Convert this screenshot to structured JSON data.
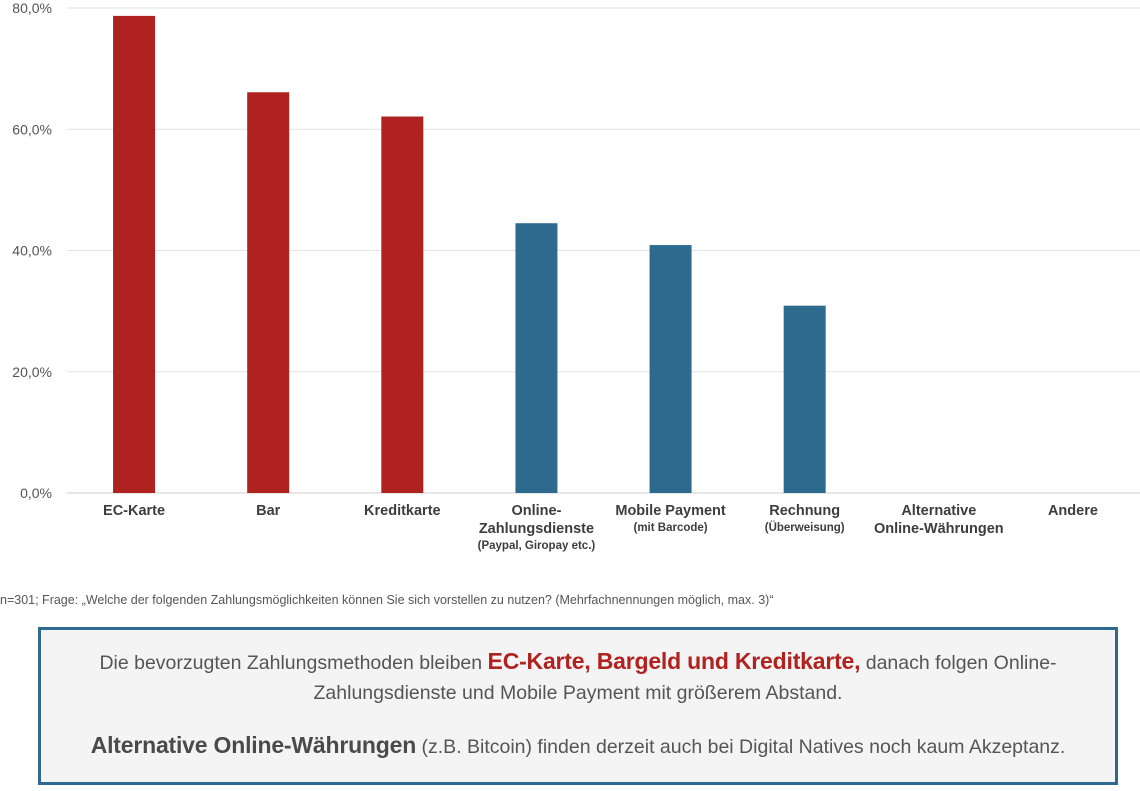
{
  "chart_data": {
    "type": "bar",
    "categories": [
      {
        "lines": [
          "EC-Karte"
        ],
        "sub": []
      },
      {
        "lines": [
          "Bar"
        ],
        "sub": []
      },
      {
        "lines": [
          "Kreditkarte"
        ],
        "sub": []
      },
      {
        "lines": [
          "Online-",
          "Zahlungsdienste"
        ],
        "sub": [
          "(Paypal, Giropay etc.)"
        ]
      },
      {
        "lines": [
          "Mobile Payment"
        ],
        "sub": [
          "(mit Barcode)"
        ]
      },
      {
        "lines": [
          "Rechnung"
        ],
        "sub": [
          "(Überweisung)"
        ]
      },
      {
        "lines": [
          "Alternative",
          "Online-Währungen"
        ],
        "sub": []
      },
      {
        "lines": [
          "Andere"
        ],
        "sub": []
      }
    ],
    "values": [
      78.7,
      66.1,
      62.1,
      44.5,
      40.9,
      30.9,
      0.0,
      0.0
    ],
    "bar_colors": [
      "#b0221f",
      "#b0221f",
      "#b0221f",
      "#2e6a8e",
      "#2e6a8e",
      "#2e6a8e",
      "#2e6a8e",
      "#2e6a8e"
    ],
    "ylim": [
      0,
      80
    ],
    "yticks": [
      "0,0%",
      "20,0%",
      "40,0%",
      "60,0%",
      "80,0%"
    ],
    "ytick_values": [
      0,
      20,
      40,
      60,
      80
    ],
    "grid": true,
    "gridline_color": "#e3e3e3"
  },
  "footnote": "n=301; Frage: „Welche der folgenden Zahlungsmöglichkeiten können Sie sich vorstellen zu nutzen? (Mehrfachnennungen möglich, max. 3)“",
  "summary": {
    "p1_before": "Die bevorzugten Zahlungsmethoden bleiben ",
    "p1_highlight": "EC-Karte, Bargeld und Kreditkarte,",
    "p1_after": " danach folgen Online-Zahlungsdienste und Mobile Payment mit größerem Abstand.",
    "p2_highlight": "Alternative Online-Währungen",
    "p2_after": " (z.B. Bitcoin) finden derzeit auch bei Digital Natives noch kaum Akzeptanz."
  }
}
